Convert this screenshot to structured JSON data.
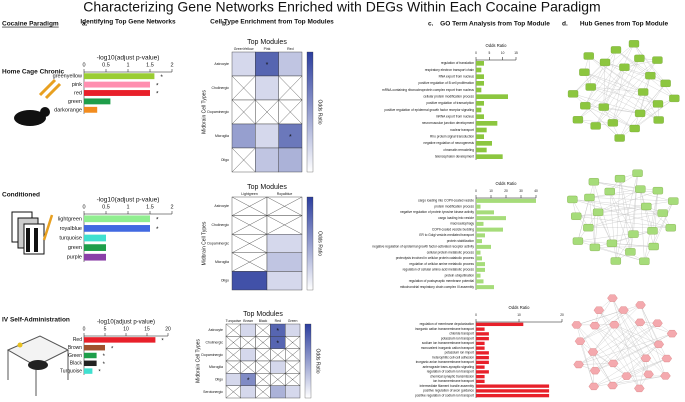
{
  "header": {
    "title": "Characterizing Gene Networks Enriched with DEGs Within Each Cocaine Paradigm",
    "paradigm": "Cocaine Paradigm",
    "a_letter": "a.",
    "a_title": "Identifying Top Gene Networks",
    "b_letter": "b.",
    "b_title": "Cell Type Enrichment from Top Modules",
    "c_letter": "c.",
    "c_title": "GO Term Analysis from Top Module",
    "d_letter": "d.",
    "d_title": "Hub Genes from Top Module"
  },
  "rows": [
    "Home Cage Chronic",
    "Conditioned",
    "IV Self-Administration"
  ],
  "chart_data": [
    {
      "type": "barh",
      "xlabel": "-log10(adjust p-value)",
      "categories": [
        "greenyellow",
        "pink",
        "red",
        "green",
        "darkorange"
      ],
      "values": [
        1.6,
        1.5,
        1.5,
        0.6,
        0.3
      ],
      "colors": [
        "#9acd32",
        "#ff8fb0",
        "#e8202a",
        "#1e9e4a",
        "#f28c1e"
      ],
      "annotations": [
        "*",
        "*",
        "*",
        null,
        null
      ],
      "xlim": [
        0,
        2
      ],
      "xticks": [
        0,
        0.5,
        1,
        1.5,
        2
      ]
    },
    {
      "type": "barh",
      "xlabel": "-log10(adjust p-value)",
      "categories": [
        "lightgreen",
        "royalblue",
        "turquoise",
        "green",
        "purple"
      ],
      "values": [
        1.5,
        1.5,
        0.5,
        0.5,
        0.5
      ],
      "colors": [
        "#90ee90",
        "#4169e1",
        "#40e0d0",
        "#1e9e4a",
        "#8a3fa8"
      ],
      "annotations": [
        "*",
        "*",
        null,
        null,
        null
      ],
      "xlim": [
        0,
        2
      ],
      "xticks": [
        0,
        0.5,
        1,
        1.5,
        2
      ]
    },
    {
      "type": "barh",
      "xlabel": "-log10(adjust p-value)",
      "categories": [
        "Red",
        "Brown",
        "Green",
        "Black",
        "Turquoise"
      ],
      "values": [
        17,
        5,
        3,
        3,
        2
      ],
      "colors": [
        "#e8202a",
        "#a0522d",
        "#1e9e4a",
        "#222222",
        "#40e0d0"
      ],
      "annotations": [
        "*",
        "*",
        "*",
        "*",
        "*"
      ],
      "xlim": [
        0,
        20
      ],
      "xticks": [
        0,
        5,
        10,
        15,
        20
      ]
    },
    {
      "type": "heatmap",
      "title": "Top Modules",
      "ylabel": "Midbrain Cell Types",
      "colorbar_label": "Odds Ratio",
      "columns": [
        "GreenYellow",
        "Pink",
        "Red"
      ],
      "rows": [
        "Astrocyte",
        "Cholinergic",
        "Dopaminergic",
        "Microglia",
        "Oligo"
      ],
      "values": [
        [
          1,
          4,
          1.5
        ],
        [
          null,
          1,
          null
        ],
        [
          null,
          null,
          null
        ],
        [
          2.5,
          1,
          3.5
        ],
        [
          null,
          1.5,
          2
        ]
      ],
      "cell_labels": [
        [
          null,
          "*",
          null
        ],
        [
          null,
          null,
          null
        ],
        [
          null,
          null,
          null
        ],
        [
          null,
          null,
          "*"
        ],
        [
          null,
          null,
          null
        ]
      ],
      "zlim": [
        0,
        5
      ]
    },
    {
      "type": "heatmap",
      "title": "Top Modules",
      "ylabel": "Midbrain Cell Types",
      "colorbar_label": "Odds Ratio",
      "columns": [
        "Lightgreen",
        "Royalblue"
      ],
      "rows": [
        "Astrocyte",
        "Cholinergic",
        "Dopaminergic",
        "Microglia",
        "Oligo"
      ],
      "values": [
        [
          null,
          null
        ],
        [
          null,
          null
        ],
        [
          null,
          1
        ],
        [
          null,
          1.5
        ],
        [
          4.5,
          1
        ]
      ],
      "cell_labels": [
        [
          null,
          null
        ],
        [
          null,
          null
        ],
        [
          null,
          null
        ],
        [
          null,
          null
        ],
        [
          null,
          null
        ]
      ],
      "zlim": [
        0,
        5
      ]
    },
    {
      "type": "heatmap",
      "title": "Top Modules",
      "ylabel": "Midbrain Cell Types",
      "colorbar_label": "Odds Ratio",
      "columns": [
        "Turquoise",
        "Brown",
        "Black",
        "Red",
        "Green"
      ],
      "rows": [
        "Astrocyte",
        "Cholinergic",
        "Dopaminergic",
        "Microglia",
        "Oligo",
        "Serotonergic"
      ],
      "values": [
        [
          null,
          1,
          null,
          4,
          1
        ],
        [
          null,
          null,
          null,
          4,
          null
        ],
        [
          null,
          1,
          null,
          null,
          null
        ],
        [
          null,
          null,
          null,
          1,
          null
        ],
        [
          1,
          3,
          null,
          null,
          null
        ],
        [
          null,
          1,
          null,
          2,
          1
        ]
      ],
      "cell_labels": [
        [
          null,
          null,
          null,
          "*",
          null
        ],
        [
          null,
          null,
          null,
          "*",
          null
        ],
        [
          null,
          null,
          null,
          null,
          null
        ],
        [
          null,
          null,
          null,
          null,
          null
        ],
        [
          null,
          "*",
          null,
          null,
          null
        ],
        [
          null,
          null,
          null,
          null,
          null
        ]
      ],
      "zlim": [
        0,
        5
      ]
    },
    {
      "type": "barh",
      "xlabel": "Odds Ratio",
      "color": "#8cc63f",
      "categories": [
        "regulation of translation",
        "respiratory electron transport chain",
        "RNA export from nucleus",
        "positive regulation of B cell proliferation",
        "mRNA-containing ribonucleoprotein complex export from nucleus",
        "cellular protein modification process",
        "positive regulation of transcription",
        "positive regulation of epidermal growth factor receptor signaling",
        "mRNA export from nucleus",
        "neuromuscular junction development",
        "nuclear transport",
        "Rho protein signal transduction",
        "negative regulation of neurogenesis",
        "chromatin remodeling",
        "telencephalon development"
      ],
      "values": [
        3,
        2,
        3,
        3,
        2,
        12,
        3,
        2,
        3,
        8,
        4,
        3,
        6,
        4,
        10
      ],
      "xlim": [
        0,
        15
      ],
      "xticks": [
        0,
        5,
        10,
        15
      ]
    },
    {
      "type": "barh",
      "xlabel": "Odds Ratio",
      "color": "#a6dc7a",
      "categories": [
        "cargo loading into COPII-coated vesicle",
        "protein modification process",
        "negative regulation of protein tyrosine kinase activity",
        "cargo loading into vesicle",
        "macroautophagy",
        "COPII-coated vesicle budding",
        "ER to Golgi vesicle-mediated transport",
        "protein stabilization",
        "negative regulation of epidermal growth factor-activated receptor activity",
        "cellular protein metabolic process",
        "proteolysis involved in cellular protein catabolic process",
        "regulation of cellular amine metabolic process",
        "regulation of cellular amino acid metabolic process",
        "protein ubiquitination",
        "regulation of postsynaptic membrane potential",
        "mitochondrial respiratory chain complex III assembly"
      ],
      "values": [
        40,
        3,
        12,
        20,
        5,
        18,
        6,
        4,
        10,
        3,
        4,
        6,
        6,
        3,
        5,
        12
      ],
      "xlim": [
        0,
        40
      ],
      "xticks": [
        0,
        10,
        20,
        30,
        40
      ]
    },
    {
      "type": "barh",
      "xlabel": "Odds Ratio",
      "color": "#e8202a",
      "categories": [
        "regulation of membrane depolarization",
        "inorganic cation transmembrane transport",
        "chloride transport",
        "potassium ion transport",
        "sodium ion transmembrane transport",
        "monovalent inorganic cation transport",
        "potassium ion import",
        "heterophilic cell-cell adhesion",
        "inorganic anion transmembrane transport",
        "anterograde trans-synaptic signaling",
        "regulation of sodium ion transport",
        "chemical synaptic transmission",
        "ion transmembrane transport",
        "intermediate filament bundle assembly",
        "positive regulation of axon guidance",
        "positive regulation of sodium ion transport"
      ],
      "values": [
        11,
        2,
        3,
        3,
        2,
        2,
        3,
        3,
        3,
        2,
        3,
        2,
        2,
        17,
        17,
        17
      ],
      "xlim": [
        0,
        20
      ],
      "xticks": [
        0,
        10,
        20
      ]
    }
  ]
}
